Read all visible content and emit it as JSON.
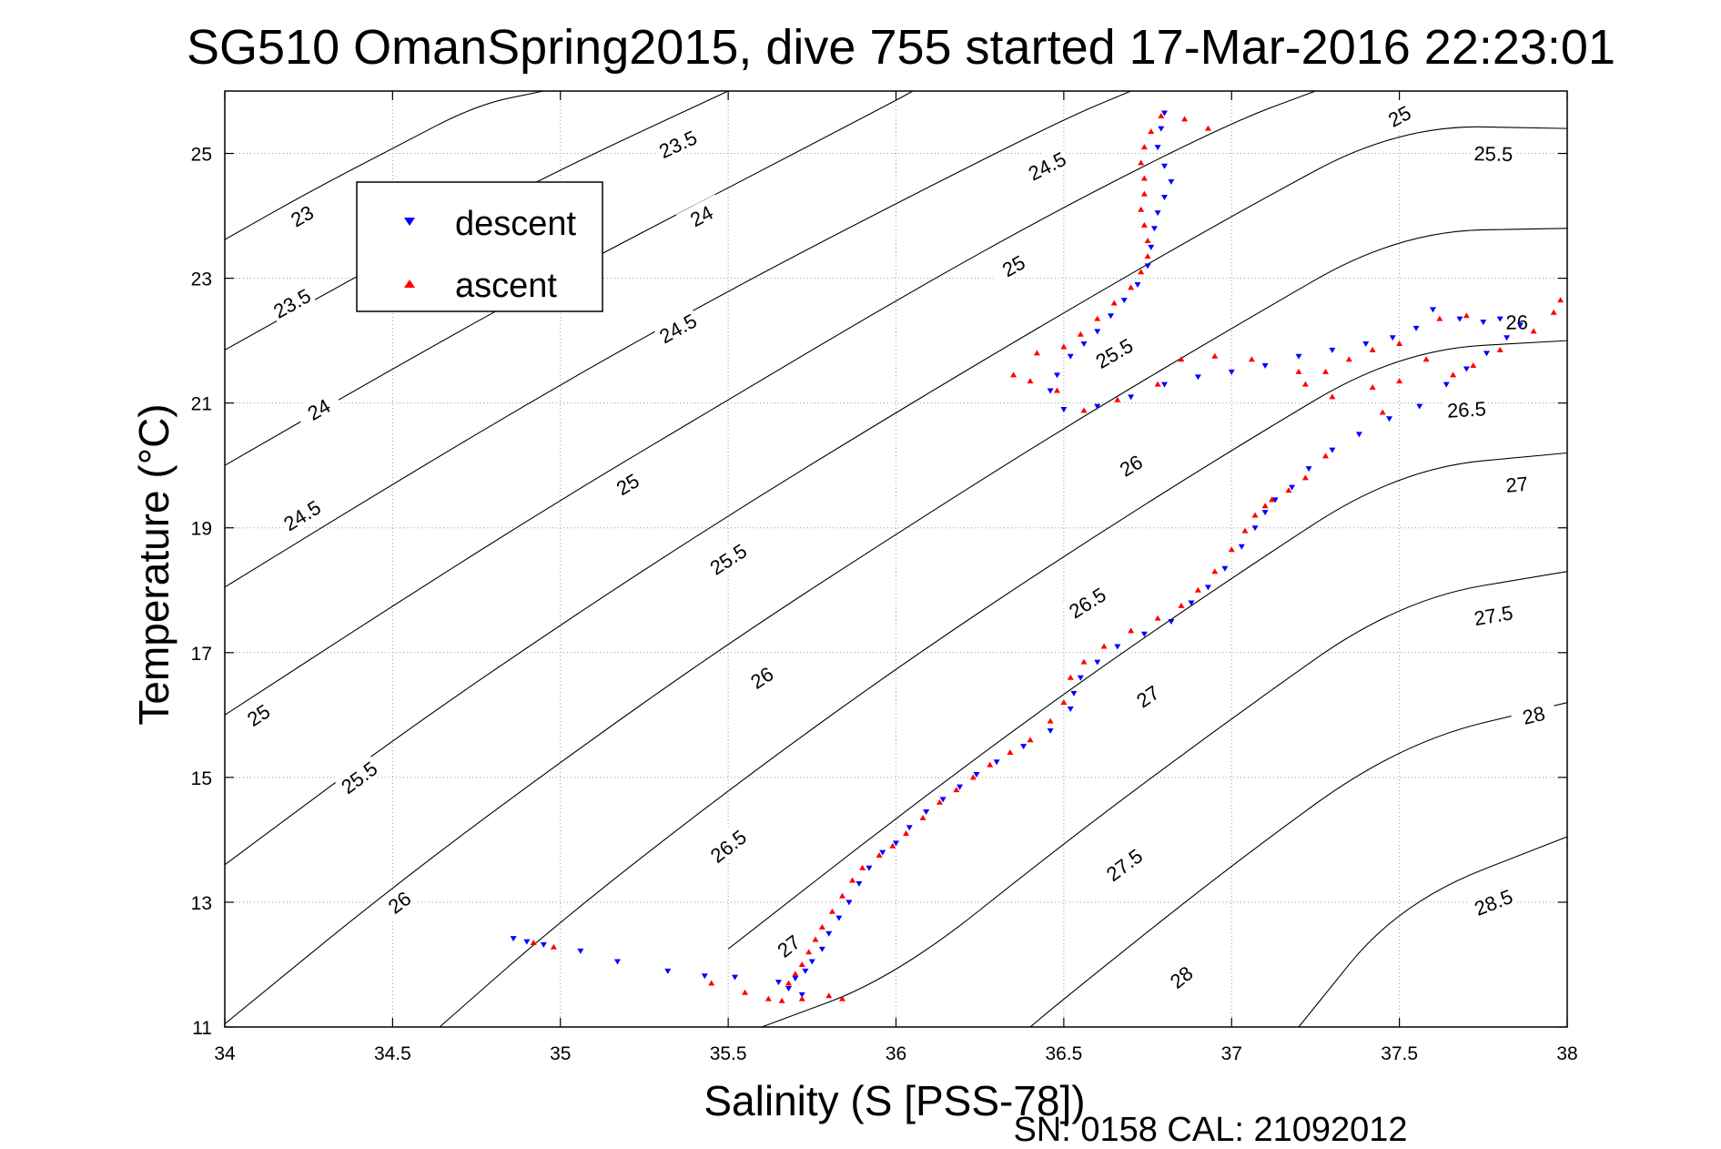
{
  "chart_data": {
    "type": "scatter",
    "title": "SG510 OmanSpring2015, dive 755 started 17-Mar-2016 22:23:01",
    "xlabel": "Salinity (S [PSS-78])",
    "ylabel": "Temperature (°C)",
    "xlim": [
      34,
      38
    ],
    "ylim": [
      11,
      26.0
    ],
    "xticks": [
      "34",
      "34.5",
      "35",
      "35.5",
      "36",
      "36.5",
      "37",
      "37.5",
      "38"
    ],
    "yticks": [
      "11",
      "13",
      "15",
      "17",
      "19",
      "21",
      "23",
      "25"
    ],
    "grid": true,
    "legend_position": "top-left",
    "footer": "SN: 0158  CAL: 21092012",
    "colors": {
      "descent": "#0000ff",
      "ascent": "#ff0000",
      "contour": "#000000"
    },
    "density_contours": [
      {
        "label": "23",
        "points": [
          [
            34,
            23.62
          ],
          [
            34.25,
            24.38
          ],
          [
            34.5,
            25.08
          ],
          [
            34.75,
            25.78
          ],
          [
            34.95,
            26.0
          ]
        ],
        "label_at": [
          34.23,
          24.0
        ]
      },
      {
        "label": "23.5",
        "points": [
          [
            34,
            21.85
          ],
          [
            34.5,
            23.35
          ],
          [
            35,
            24.75
          ],
          [
            35.5,
            26.0
          ]
        ],
        "label_at": [
          34.2,
          22.6
        ],
        "label_at2": [
          35.35,
          25.15
        ]
      },
      {
        "label": "24",
        "points": [
          [
            34,
            20.0
          ],
          [
            34.5,
            21.55
          ],
          [
            35,
            23.05
          ],
          [
            35.5,
            24.45
          ],
          [
            36.0,
            25.85
          ],
          [
            36.05,
            26.0
          ]
        ],
        "label_at": [
          34.28,
          20.9
        ],
        "label_at2": [
          35.42,
          24.0
        ]
      },
      {
        "label": "24.5",
        "points": [
          [
            34,
            18.05
          ],
          [
            34.5,
            19.7
          ],
          [
            35,
            21.3
          ],
          [
            35.5,
            22.8
          ],
          [
            36,
            24.2
          ],
          [
            36.5,
            25.55
          ],
          [
            36.7,
            26.0
          ]
        ],
        "label_at": [
          34.23,
          19.2
        ],
        "label_at2": [
          35.35,
          22.2
        ],
        "label_at3": [
          36.45,
          24.8
        ]
      },
      {
        "label": "25",
        "points": [
          [
            34,
            16.0
          ],
          [
            34.5,
            17.75
          ],
          [
            35,
            19.45
          ],
          [
            35.5,
            21.05
          ],
          [
            36,
            22.65
          ],
          [
            36.5,
            24.15
          ],
          [
            37,
            25.5
          ],
          [
            37.25,
            26.0
          ]
        ],
        "label_at": [
          34.1,
          16.0
        ],
        "label_at2": [
          35.2,
          19.7
        ],
        "label_at3": [
          36.35,
          23.2
        ],
        "label_at4": [
          37.5,
          25.6
        ]
      },
      {
        "label": "25.5",
        "points": [
          [
            34,
            13.6
          ],
          [
            34.5,
            15.6
          ],
          [
            35,
            17.45
          ],
          [
            35.5,
            19.2
          ],
          [
            36,
            20.85
          ],
          [
            36.5,
            22.45
          ],
          [
            37,
            24.0
          ],
          [
            37.5,
            25.45
          ],
          [
            38,
            25.4
          ]
        ],
        "label_at": [
          34.4,
          15.0
        ],
        "label_at2": [
          35.5,
          18.5
        ],
        "label_at3": [
          36.65,
          21.8
        ],
        "label_at4": [
          37.78,
          25.0
        ]
      },
      {
        "label": "26",
        "points": [
          [
            34,
            11.05
          ],
          [
            34.5,
            13.25
          ],
          [
            35,
            15.25
          ],
          [
            35.5,
            17.15
          ],
          [
            36,
            18.9
          ],
          [
            36.5,
            20.6
          ],
          [
            37,
            22.2
          ],
          [
            37.5,
            23.75
          ],
          [
            38,
            23.8
          ]
        ],
        "label_at": [
          34.52,
          13.0
        ],
        "label_at2": [
          35.6,
          16.6
        ],
        "label_at3": [
          36.7,
          20.0
        ],
        "label_at4": [
          37.85,
          22.3
        ]
      },
      {
        "label": "26.5",
        "points": [
          [
            34.64,
            11.0
          ],
          [
            35,
            12.7
          ],
          [
            35.5,
            14.8
          ],
          [
            36,
            16.75
          ],
          [
            36.5,
            18.55
          ],
          [
            37,
            20.25
          ],
          [
            37.5,
            21.85
          ],
          [
            38,
            22.0
          ]
        ],
        "label_at": [
          35.5,
          13.9
        ],
        "label_at2": [
          36.57,
          17.8
        ],
        "label_at3": [
          37.7,
          20.9
        ]
      },
      {
        "label": "27",
        "points": [
          [
            35.5,
            12.25
          ],
          [
            36,
            14.35
          ],
          [
            36.5,
            16.35
          ],
          [
            37,
            18.2
          ],
          [
            37.5,
            19.95
          ],
          [
            38,
            20.2
          ]
        ],
        "label_at": [
          35.68,
          12.3
        ],
        "label_at2": [
          36.75,
          16.3
        ],
        "label_at3": [
          37.85,
          19.7
        ]
      },
      {
        "label": "27.5",
        "points": [
          [
            35.6,
            11.0
          ],
          [
            36,
            11.8
          ],
          [
            36.5,
            13.95
          ],
          [
            37,
            15.95
          ],
          [
            37.5,
            17.85
          ],
          [
            38,
            18.3
          ]
        ],
        "label_at": [
          36.68,
          13.6
        ],
        "label_at2": [
          37.78,
          17.6
        ]
      },
      {
        "label": "28",
        "points": [
          [
            36.4,
            11.0
          ],
          [
            36.5,
            11.45
          ],
          [
            37,
            13.6
          ],
          [
            37.5,
            15.55
          ],
          [
            38,
            16.2
          ]
        ],
        "label_at": [
          36.85,
          11.8
        ],
        "label_at2": [
          37.9,
          16.0
        ]
      },
      {
        "label": "28.5",
        "points": [
          [
            37.2,
            11.0
          ],
          [
            37.5,
            13.0
          ],
          [
            38,
            14.05
          ]
        ],
        "label_at": [
          37.78,
          13.0
        ]
      }
    ],
    "series": [
      {
        "name": "descent",
        "color": "#0000ff",
        "marker": "triangle-down",
        "points": [
          [
            34.86,
            12.42
          ],
          [
            34.9,
            12.37
          ],
          [
            34.95,
            12.32
          ],
          [
            35.06,
            12.22
          ],
          [
            35.17,
            12.05
          ],
          [
            35.32,
            11.9
          ],
          [
            35.43,
            11.82
          ],
          [
            35.52,
            11.8
          ],
          [
            35.65,
            11.72
          ],
          [
            35.68,
            11.62
          ],
          [
            35.72,
            11.52
          ],
          [
            35.7,
            11.78
          ],
          [
            35.73,
            11.9
          ],
          [
            35.75,
            12.05
          ],
          [
            35.78,
            12.25
          ],
          [
            35.8,
            12.5
          ],
          [
            35.83,
            12.75
          ],
          [
            35.86,
            13.0
          ],
          [
            35.89,
            13.3
          ],
          [
            35.92,
            13.55
          ],
          [
            35.96,
            13.8
          ],
          [
            36.0,
            13.95
          ],
          [
            36.04,
            14.2
          ],
          [
            36.09,
            14.45
          ],
          [
            36.14,
            14.65
          ],
          [
            36.19,
            14.85
          ],
          [
            36.24,
            15.05
          ],
          [
            36.3,
            15.25
          ],
          [
            36.38,
            15.5
          ],
          [
            36.46,
            15.75
          ],
          [
            36.52,
            16.1
          ],
          [
            36.53,
            16.35
          ],
          [
            36.55,
            16.6
          ],
          [
            36.6,
            16.85
          ],
          [
            36.66,
            17.1
          ],
          [
            36.74,
            17.3
          ],
          [
            36.82,
            17.5
          ],
          [
            36.88,
            17.8
          ],
          [
            36.93,
            18.05
          ],
          [
            36.98,
            18.35
          ],
          [
            37.03,
            18.7
          ],
          [
            37.07,
            19.0
          ],
          [
            37.1,
            19.25
          ],
          [
            37.13,
            19.45
          ],
          [
            37.18,
            19.65
          ],
          [
            37.23,
            19.95
          ],
          [
            37.3,
            20.25
          ],
          [
            37.38,
            20.5
          ],
          [
            37.47,
            20.75
          ],
          [
            37.56,
            20.95
          ],
          [
            37.64,
            21.3
          ],
          [
            37.7,
            21.55
          ],
          [
            37.76,
            21.8
          ],
          [
            37.82,
            22.05
          ],
          [
            37.86,
            22.25
          ],
          [
            37.8,
            22.35
          ],
          [
            37.75,
            22.3
          ],
          [
            37.68,
            22.35
          ],
          [
            37.6,
            22.5
          ],
          [
            37.55,
            22.2
          ],
          [
            37.48,
            22.05
          ],
          [
            37.4,
            21.95
          ],
          [
            37.3,
            21.85
          ],
          [
            37.2,
            21.75
          ],
          [
            37.1,
            21.6
          ],
          [
            37.0,
            21.5
          ],
          [
            36.9,
            21.42
          ],
          [
            36.8,
            21.3
          ],
          [
            36.7,
            21.1
          ],
          [
            36.6,
            20.95
          ],
          [
            36.5,
            20.9
          ],
          [
            36.46,
            21.2
          ],
          [
            36.48,
            21.45
          ],
          [
            36.52,
            21.75
          ],
          [
            36.56,
            21.95
          ],
          [
            36.6,
            22.15
          ],
          [
            36.64,
            22.4
          ],
          [
            36.68,
            22.65
          ],
          [
            36.72,
            22.9
          ],
          [
            36.75,
            23.2
          ],
          [
            36.76,
            23.5
          ],
          [
            36.77,
            23.8
          ],
          [
            36.78,
            24.05
          ],
          [
            36.8,
            24.3
          ],
          [
            36.82,
            24.55
          ],
          [
            36.8,
            24.8
          ],
          [
            36.78,
            25.1
          ],
          [
            36.79,
            25.4
          ],
          [
            36.8,
            25.65
          ]
        ]
      },
      {
        "name": "ascent",
        "color": "#ff0000",
        "marker": "triangle-up",
        "points": [
          [
            34.92,
            12.35
          ],
          [
            34.98,
            12.28
          ],
          [
            35.45,
            11.7
          ],
          [
            35.55,
            11.55
          ],
          [
            35.62,
            11.45
          ],
          [
            35.66,
            11.42
          ],
          [
            35.72,
            11.45
          ],
          [
            35.8,
            11.5
          ],
          [
            35.84,
            11.45
          ],
          [
            35.68,
            11.7
          ],
          [
            35.7,
            11.85
          ],
          [
            35.72,
            12.0
          ],
          [
            35.74,
            12.2
          ],
          [
            35.76,
            12.4
          ],
          [
            35.78,
            12.6
          ],
          [
            35.81,
            12.85
          ],
          [
            35.84,
            13.1
          ],
          [
            35.87,
            13.35
          ],
          [
            35.9,
            13.55
          ],
          [
            35.95,
            13.75
          ],
          [
            35.99,
            13.9
          ],
          [
            36.03,
            14.1
          ],
          [
            36.08,
            14.35
          ],
          [
            36.13,
            14.6
          ],
          [
            36.18,
            14.8
          ],
          [
            36.23,
            15.0
          ],
          [
            36.28,
            15.2
          ],
          [
            36.34,
            15.4
          ],
          [
            36.4,
            15.6
          ],
          [
            36.46,
            15.9
          ],
          [
            36.5,
            16.2
          ],
          [
            36.52,
            16.6
          ],
          [
            36.56,
            16.85
          ],
          [
            36.62,
            17.1
          ],
          [
            36.7,
            17.35
          ],
          [
            36.78,
            17.55
          ],
          [
            36.85,
            17.75
          ],
          [
            36.9,
            18.0
          ],
          [
            36.95,
            18.3
          ],
          [
            37.0,
            18.65
          ],
          [
            37.04,
            18.95
          ],
          [
            37.07,
            19.2
          ],
          [
            37.12,
            19.45
          ],
          [
            37.17,
            19.6
          ],
          [
            37.22,
            19.8
          ],
          [
            37.1,
            19.35
          ],
          [
            37.28,
            20.15
          ],
          [
            37.45,
            20.85
          ],
          [
            37.3,
            21.1
          ],
          [
            37.22,
            21.3
          ],
          [
            37.28,
            21.5
          ],
          [
            37.35,
            21.7
          ],
          [
            37.42,
            21.85
          ],
          [
            37.5,
            21.95
          ],
          [
            37.58,
            21.7
          ],
          [
            37.66,
            21.45
          ],
          [
            37.72,
            21.6
          ],
          [
            37.8,
            21.85
          ],
          [
            37.9,
            22.15
          ],
          [
            37.96,
            22.45
          ],
          [
            37.98,
            22.65
          ],
          [
            37.7,
            22.4
          ],
          [
            37.62,
            22.35
          ],
          [
            37.5,
            21.35
          ],
          [
            37.42,
            21.25
          ],
          [
            37.2,
            21.5
          ],
          [
            37.06,
            21.7
          ],
          [
            36.95,
            21.75
          ],
          [
            36.85,
            21.7
          ],
          [
            36.78,
            21.3
          ],
          [
            36.66,
            21.05
          ],
          [
            36.56,
            20.88
          ],
          [
            36.48,
            21.2
          ],
          [
            36.4,
            21.35
          ],
          [
            36.35,
            21.45
          ],
          [
            36.42,
            21.8
          ],
          [
            36.5,
            21.9
          ],
          [
            36.55,
            22.1
          ],
          [
            36.6,
            22.35
          ],
          [
            36.65,
            22.6
          ],
          [
            36.7,
            22.85
          ],
          [
            36.73,
            23.1
          ],
          [
            36.75,
            23.35
          ],
          [
            36.75,
            23.6
          ],
          [
            36.74,
            23.85
          ],
          [
            36.73,
            24.1
          ],
          [
            36.74,
            24.35
          ],
          [
            36.74,
            24.6
          ],
          [
            36.73,
            24.85
          ],
          [
            36.74,
            25.1
          ],
          [
            36.76,
            25.35
          ],
          [
            36.79,
            25.6
          ],
          [
            36.86,
            25.55
          ],
          [
            36.93,
            25.4
          ]
        ]
      }
    ]
  }
}
